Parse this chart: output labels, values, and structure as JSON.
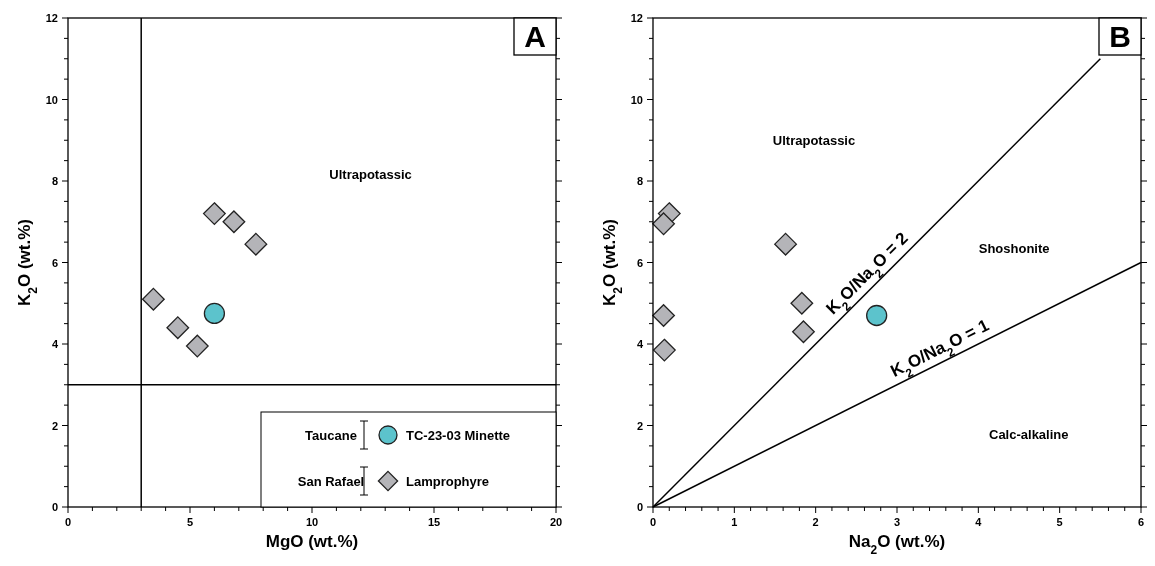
{
  "chart_data": [
    {
      "type": "scatter",
      "title": "A",
      "xlabel": "MgO (wt.%)",
      "ylabel": "K$_{2}$O (wt.%)",
      "xlim": [
        0,
        20
      ],
      "ylim": [
        0,
        12
      ],
      "xticks": [
        0,
        {
          "value": 1,
          "label": null
        },
        {
          "value": 2,
          "label": null
        },
        {
          "value": 3,
          "label": null
        },
        {
          "value": 4,
          "label": null
        },
        5,
        {
          "value": 6,
          "label": null
        },
        {
          "value": 7,
          "label": null
        },
        {
          "value": 8,
          "label": null
        },
        {
          "value": 9,
          "label": null
        },
        10,
        {
          "value": 11,
          "label": null
        },
        {
          "value": 12,
          "label": null
        },
        {
          "value": 13,
          "label": null
        },
        {
          "value": 14,
          "label": null
        },
        15,
        {
          "value": 16,
          "label": null
        },
        {
          "value": 17,
          "label": null
        },
        {
          "value": 18,
          "label": null
        },
        {
          "value": 19,
          "label": null
        },
        20
      ],
      "yticks": [
        0,
        {
          "value": 0.5,
          "label": null
        },
        {
          "value": 1,
          "label": null
        },
        {
          "value": 1.5,
          "label": null
        },
        2,
        {
          "value": 2.5,
          "label": null
        },
        {
          "value": 3,
          "label": null
        },
        {
          "value": 3.5,
          "label": null
        },
        4,
        {
          "value": 4.5,
          "label": null
        },
        {
          "value": 5,
          "label": null
        },
        {
          "value": 5.5,
          "label": null
        },
        6,
        {
          "value": 6.5,
          "label": null
        },
        {
          "value": 7,
          "label": null
        },
        {
          "value": 7.5,
          "label": null
        },
        8,
        {
          "value": 8.5,
          "label": null
        },
        {
          "value": 9,
          "label": null
        },
        {
          "value": 9.5,
          "label": null
        },
        10,
        {
          "value": 10.5,
          "label": null
        },
        {
          "value": 11,
          "label": null
        },
        {
          "value": 11.5,
          "label": null
        },
        12
      ],
      "legend": "bottom right",
      "series": [
        {
          "type": "line",
          "color": "#000000",
          "x": [
            3,
            3
          ],
          "values": [
            0,
            12
          ]
        },
        {
          "type": "line",
          "color": "#000000",
          "x": [
            0,
            20
          ],
          "values": [
            3,
            3
          ]
        },
        {
          "name": "TC-23-03 Minette",
          "color": "#5cc3cc",
          "marker": "circle",
          "x": [
            6.0
          ],
          "values": [
            4.75
          ]
        },
        {
          "name": "Lamprophyre",
          "color": "#b4b4b8",
          "marker": "diamond",
          "x": [
            6.0,
            6.8,
            7.7,
            3.5,
            4.5,
            5.3
          ],
          "values": [
            7.2,
            7.0,
            6.45,
            5.1,
            4.4,
            3.95
          ]
        }
      ],
      "annotations": [
        "Taucane",
        "San Rafael",
        "Ultrapotassic"
      ]
    },
    {
      "type": "scatter",
      "title": "B",
      "xlabel": "Na$_{2}$O (wt.%)",
      "ylabel": "K$_{2}$O (wt.%)",
      "xlim": [
        0,
        6
      ],
      "ylim": [
        0,
        12
      ],
      "xticks": [
        0,
        {
          "value": 0.2,
          "label": null
        },
        {
          "value": 0.4,
          "label": null
        },
        {
          "value": 0.6,
          "label": null
        },
        {
          "value": 0.8,
          "label": null
        },
        1,
        {
          "value": 1.2,
          "label": null
        },
        {
          "value": 1.4,
          "label": null
        },
        {
          "value": 1.6,
          "label": null
        },
        {
          "value": 1.8,
          "label": null
        },
        2,
        {
          "value": 2.2,
          "label": null
        },
        {
          "value": 2.4,
          "label": null
        },
        {
          "value": 2.6,
          "label": null
        },
        {
          "value": 2.8,
          "label": null
        },
        3,
        {
          "value": 3.2,
          "label": null
        },
        {
          "value": 3.4,
          "label": null
        },
        {
          "value": 3.6,
          "label": null
        },
        {
          "value": 3.8,
          "label": null
        },
        4,
        {
          "value": 4.2,
          "label": null
        },
        {
          "value": 4.4,
          "label": null
        },
        {
          "value": 4.6,
          "label": null
        },
        {
          "value": 4.8,
          "label": null
        },
        5,
        {
          "value": 5.2,
          "label": null
        },
        {
          "value": 5.4,
          "label": null
        },
        {
          "value": 5.6,
          "label": null
        },
        {
          "value": 5.8,
          "label": null
        },
        6
      ],
      "yticks": [
        0,
        {
          "value": 0.5,
          "label": null
        },
        {
          "value": 1,
          "label": null
        },
        {
          "value": 1.5,
          "label": null
        },
        2,
        {
          "value": 2.5,
          "label": null
        },
        {
          "value": 3,
          "label": null
        },
        {
          "value": 3.5,
          "label": null
        },
        4,
        {
          "value": 4.5,
          "label": null
        },
        {
          "value": 5,
          "label": null
        },
        {
          "value": 5.5,
          "label": null
        },
        6,
        {
          "value": 6.5,
          "label": null
        },
        {
          "value": 7,
          "label": null
        },
        {
          "value": 7.5,
          "label": null
        },
        8,
        {
          "value": 8.5,
          "label": null
        },
        {
          "value": 9,
          "label": null
        },
        {
          "value": 9.5,
          "label": null
        },
        10,
        {
          "value": 10.5,
          "label": null
        },
        {
          "value": 11,
          "label": null
        },
        {
          "value": 11.5,
          "label": null
        },
        12
      ],
      "series": [
        {
          "type": "line",
          "name": "K$_{2}$O/Na$_{2}$O = 2",
          "color": "#000000",
          "x": [
            0,
            5.5
          ],
          "values": [
            0,
            11
          ]
        },
        {
          "type": "line",
          "name": "K$_{2}$O/Na$_{2}$O = 1",
          "color": "#000000",
          "x": [
            0,
            6
          ],
          "values": [
            0,
            6
          ]
        },
        {
          "color": "#5cc3cc",
          "marker": "circle",
          "x": [
            2.75
          ],
          "values": [
            4.7
          ]
        },
        {
          "color": "#b4b4b8",
          "marker": "diamond",
          "x": [
            0.2,
            0.13,
            1.63,
            1.83,
            1.85,
            0.13,
            0.14
          ],
          "values": [
            7.2,
            6.95,
            6.45,
            5.0,
            4.3,
            4.7,
            3.85
          ]
        }
      ],
      "annotations": [
        "Ultrapotassic",
        "Shoshonite",
        "Calc-alkaline"
      ]
    }
  ]
}
